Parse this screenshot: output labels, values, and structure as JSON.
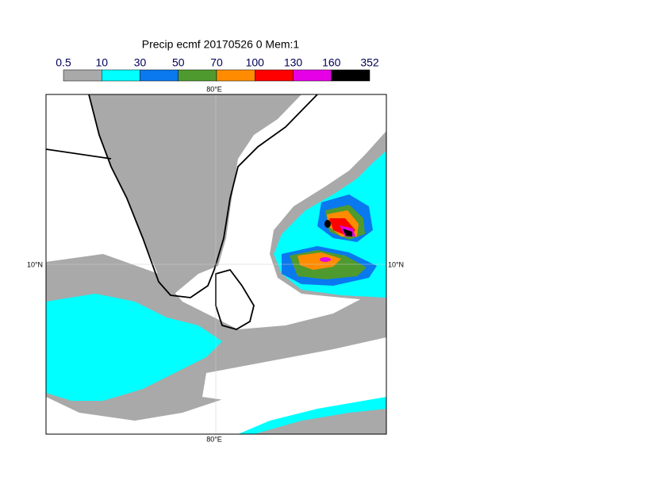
{
  "title": "Precip ecmf 20170526 0 Mem:1",
  "colorbar": {
    "levels": [
      0.5,
      10,
      30,
      50,
      70,
      100,
      130,
      160,
      352
    ],
    "colors": [
      "#a9a9a9",
      "#00ffff",
      "#0a78ee",
      "#4f9a2e",
      "#ff8c00",
      "#ff0000",
      "#e600e6",
      "#000000"
    ]
  },
  "axis_labels": {
    "lon_top": "80°E",
    "lon_bottom": "80°E",
    "lat_left": "10°N",
    "lat_right": "10°N"
  }
}
